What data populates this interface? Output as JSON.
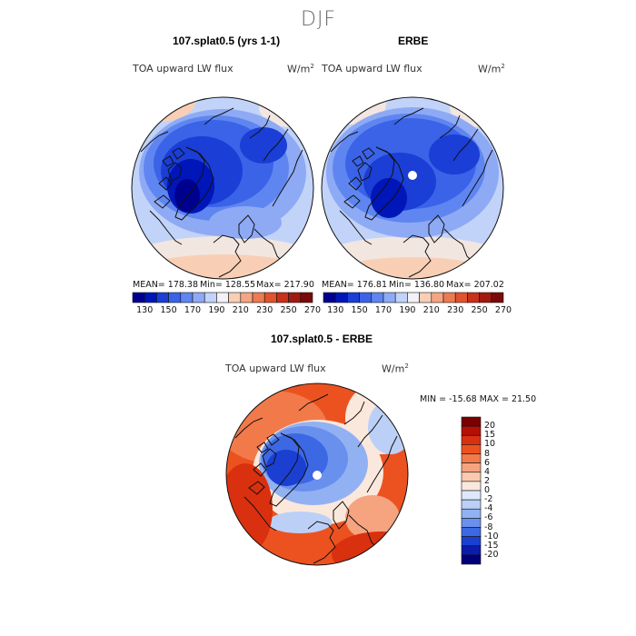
{
  "page": {
    "title": "DJF"
  },
  "panels": [
    {
      "subtitle": "107.splat0.5 (yrs 1-1)",
      "variable": "TOA upward LW flux",
      "units": "W/m",
      "stats": {
        "mean": "MEAN= 178.38",
        "min": "Min= 128.55",
        "max": "Max= 217.90"
      }
    },
    {
      "subtitle": "ERBE",
      "variable": "TOA upward LW flux",
      "units": "W/m",
      "stats": {
        "mean": "MEAN= 176.81",
        "min": "Min= 136.80",
        "max": "Max= 207.02"
      }
    }
  ],
  "colorbar_top": {
    "labels": [
      "130",
      "150",
      "170",
      "190",
      "210",
      "230",
      "250",
      "270"
    ],
    "colors": [
      "#00008f",
      "#0016b8",
      "#1a3ed6",
      "#3a63e8",
      "#5f86f0",
      "#8eaaf5",
      "#c2d3f9",
      "#f2f2f8",
      "#f8cfb5",
      "#f4a582",
      "#ec7b52",
      "#e1532c",
      "#c8301a",
      "#a01a0f",
      "#7a0a0a"
    ]
  },
  "diff_panel": {
    "subtitle": "107.splat0.5 - ERBE",
    "variable": "TOA upward LW flux",
    "units": "W/m",
    "stats": "MIN = -15.68 MAX =  21.50"
  },
  "colorbar_diff": {
    "labels": [
      "20",
      "15",
      "10",
      "8",
      "6",
      "4",
      "2",
      "0",
      "-2",
      "-4",
      "-6",
      "-8",
      "-10",
      "-15",
      "-20"
    ],
    "colors": [
      "#7a0000",
      "#b50f06",
      "#d9300f",
      "#ec5220",
      "#f27a4a",
      "#f6a380",
      "#f9c9b0",
      "#fbe8dc",
      "#dee8fb",
      "#bcd0f7",
      "#92b1f3",
      "#6a90ee",
      "#3d68e4",
      "#1a3fd1",
      "#0b1cac",
      "#03007a"
    ]
  },
  "legend_colors": {
    "map_deep_blue": "#1d47d0",
    "map_mid_blue": "#4a74e6",
    "map_light_blue": "#9cb7f3",
    "map_red": "#e0461c",
    "coast": "#111111"
  }
}
